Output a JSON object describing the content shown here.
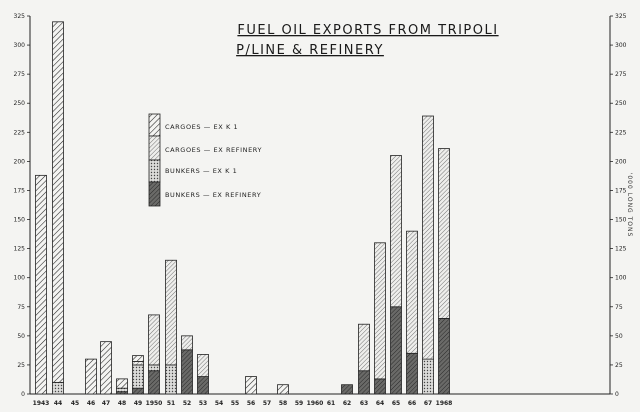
{
  "chart_data": {
    "type": "bar",
    "stacked": true,
    "title": "FUEL OIL EXPORTS FROM TRIPOLI",
    "subtitle": "P/LINE & REFINERY",
    "ylabel": "'000 LONG TONS",
    "xlabel": "",
    "ylim": [
      0,
      325
    ],
    "yticks": [
      0,
      25,
      50,
      75,
      100,
      125,
      150,
      175,
      200,
      225,
      250,
      275,
      300,
      325
    ],
    "grid": false,
    "legend_position": "upper-left",
    "categories": [
      "1943",
      "44",
      "45",
      "46",
      "47",
      "48",
      "49",
      "1950",
      "51",
      "52",
      "53",
      "54",
      "55",
      "56",
      "57",
      "58",
      "59",
      "1960",
      "61",
      "62",
      "63",
      "64",
      "65",
      "66",
      "67",
      "1968"
    ],
    "series": [
      {
        "name": "BUNKERS — EX REFINERY",
        "pattern": "cross-dark",
        "values": [
          0,
          0,
          0,
          0,
          0,
          2,
          5,
          20,
          0,
          38,
          15,
          0,
          0,
          0,
          0,
          0,
          0,
          0,
          0,
          8,
          20,
          13,
          75,
          35,
          0,
          65
        ]
      },
      {
        "name": "BUNKERS — EX K 1",
        "pattern": "dots",
        "values": [
          0,
          10,
          0,
          0,
          0,
          3,
          20,
          5,
          25,
          0,
          0,
          0,
          0,
          0,
          0,
          0,
          0,
          0,
          0,
          0,
          0,
          0,
          0,
          0,
          30,
          0
        ]
      },
      {
        "name": "CARGOES — EX REFINERY",
        "pattern": "diag-fine",
        "values": [
          0,
          0,
          0,
          0,
          0,
          0,
          3,
          43,
          90,
          12,
          19,
          0,
          0,
          0,
          0,
          0,
          0,
          0,
          0,
          0,
          40,
          117,
          130,
          105,
          209,
          146
        ]
      },
      {
        "name": "CARGOES — EX K 1",
        "pattern": "diag",
        "values": [
          188,
          310,
          0,
          30,
          45,
          8,
          5,
          0,
          0,
          0,
          0,
          0,
          0,
          15,
          0,
          8,
          0,
          0,
          0,
          0,
          0,
          0,
          0,
          0,
          0,
          0
        ]
      }
    ],
    "legend_labels": [
      "CARGOES — EX K 1",
      "CARGOES — EX REFINERY",
      "BUNKERS — EX K 1",
      "BUNKERS — EX REFINERY"
    ]
  }
}
